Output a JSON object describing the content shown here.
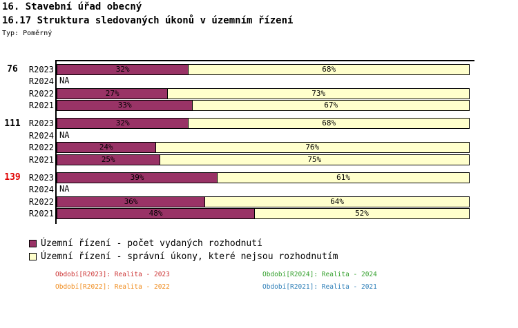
{
  "header": {
    "line1": "16. Stavební úřad obecný",
    "line2": "16.17 Struktura sledovaných úkonů v územním řízení",
    "type_label": "Typ: Poměrný"
  },
  "chart_data": {
    "type": "bar",
    "orientation": "horizontal",
    "stacked": true,
    "unit": "%",
    "xlim": [
      0,
      100
    ],
    "na_label": "NA",
    "series": [
      {
        "name": "Územní řízení - počet vydaných rozhodnutí",
        "color": "#993366"
      },
      {
        "name": "Územní řízení - správní úkony, které nejsou rozhodnutím",
        "color": "#ffffcc"
      }
    ],
    "groups": [
      {
        "total": "76",
        "total_color": "#000000",
        "rows": [
          {
            "label": "R2023",
            "values": [
              32,
              68
            ]
          },
          {
            "label": "R2024",
            "na": true
          },
          {
            "label": "R2022",
            "values": [
              27,
              73
            ]
          },
          {
            "label": "R2021",
            "values": [
              33,
              67
            ]
          }
        ]
      },
      {
        "total": "111",
        "total_color": "#000000",
        "rows": [
          {
            "label": "R2023",
            "values": [
              32,
              68
            ]
          },
          {
            "label": "R2024",
            "na": true
          },
          {
            "label": "R2022",
            "values": [
              24,
              76
            ]
          },
          {
            "label": "R2021",
            "values": [
              25,
              75
            ]
          }
        ]
      },
      {
        "total": "139",
        "total_color": "#e00000",
        "rows": [
          {
            "label": "R2023",
            "values": [
              39,
              61
            ]
          },
          {
            "label": "R2024",
            "na": true
          },
          {
            "label": "R2022",
            "values": [
              36,
              64
            ]
          },
          {
            "label": "R2021",
            "values": [
              48,
              52
            ]
          }
        ]
      }
    ]
  },
  "periods": [
    {
      "label": "Období[R2023]: Realita - 2023",
      "color": "#cc3333"
    },
    {
      "label": "Období[R2024]: Realita - 2024",
      "color": "#33a02c"
    },
    {
      "label": "Období[R2022]: Realita - 2022",
      "color": "#f08c1e"
    },
    {
      "label": "Období[R2021]: Realita - 2021",
      "color": "#2e7fb8"
    }
  ]
}
